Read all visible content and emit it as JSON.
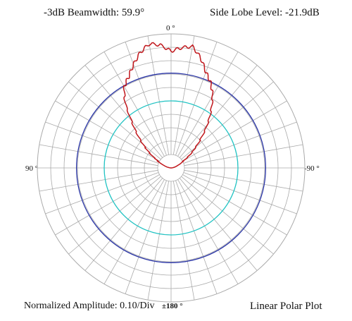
{
  "header": {
    "beamwidth": "-3dB Beamwidth:  59.9°",
    "side_lobe": "Side Lobe Level:  -21.9dB"
  },
  "angle_labels": {
    "top": "0 °",
    "left": "90 °",
    "right": "-90 °",
    "bottom": "±180 °"
  },
  "footer": {
    "amplitude": "Normalized Amplitude:  0.10/Div",
    "plot_type": "Linear Polar Plot"
  },
  "chart_data": {
    "type": "polar-line",
    "scale": "linear",
    "rmax": 1.0,
    "radial_division": 0.1,
    "angular_division_deg": 10,
    "zero_direction": "top",
    "grid": true,
    "colors": {
      "grid": "#aaaaaa",
      "pattern": "#c0161b",
      "ref_outer": "#2a35a8",
      "ref_inner": "#22c4c4"
    },
    "reference_circles": [
      {
        "level": 0.707
      },
      {
        "level": 0.5
      }
    ],
    "series": [
      {
        "theta_deg": [
          -90,
          -80,
          -70,
          -60,
          -50,
          -45,
          -40,
          -35,
          -30,
          -25,
          -20,
          -15,
          -10,
          -5,
          0,
          5,
          10,
          15,
          20,
          25,
          30,
          35,
          40,
          45,
          50,
          60,
          70,
          80,
          90
        ],
        "r": [
          0.0,
          0.02,
          0.05,
          0.11,
          0.24,
          0.32,
          0.42,
          0.52,
          0.62,
          0.7,
          0.76,
          0.85,
          0.92,
          0.9,
          0.87,
          0.92,
          0.94,
          0.89,
          0.82,
          0.75,
          0.7,
          0.6,
          0.46,
          0.36,
          0.27,
          0.13,
          0.06,
          0.02,
          0.0
        ]
      }
    ]
  }
}
